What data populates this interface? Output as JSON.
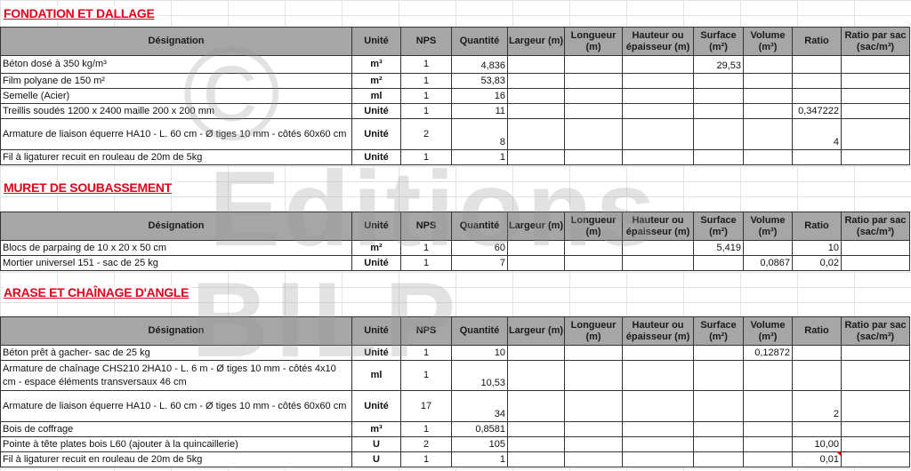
{
  "columns": [
    "Désignation",
    "Unité",
    "NPS",
    "Quantité",
    "Largeur (m)",
    "Longueur (m)",
    "Hauteur ou épaisseur (m)",
    "Surface (m²)",
    "Volume (m³)",
    "Ratio",
    "Ratio par sac (sac/m³)"
  ],
  "watermark": {
    "symbol": "©",
    "line1": "Editions",
    "line2": "BILP"
  },
  "sections": [
    {
      "title": "FONDATION ET DALLAGE",
      "rows": [
        [
          "Béton dosé à 350 kg/m³",
          "m³",
          "1",
          "4,836",
          "",
          "",
          "",
          "29,53",
          "",
          "",
          ""
        ],
        [
          "Film polyane de 150 m²",
          "m²",
          "1",
          "53,83",
          "",
          "",
          "",
          "",
          "",
          "",
          ""
        ],
        [
          "Semelle (Acier)",
          "ml",
          "1",
          "16",
          "",
          "",
          "",
          "",
          "",
          "",
          ""
        ],
        [
          "Treillis soudés 1200 x 2400 maille 200 x 200 mm",
          "Unité",
          "1",
          "11",
          "",
          "",
          "",
          "",
          "",
          "0,347222",
          ""
        ],
        [
          "Armature de liaison équerre HA10 - L. 60 cm - Ø tiges 10 mm - côtés 60x60 cm",
          "Unité",
          "2",
          "8",
          "",
          "",
          "",
          "",
          "",
          "4",
          ""
        ],
        [
          "Fil à ligaturer recuit en rouleau de 20m de 5kg",
          "Unité",
          "1",
          "1",
          "",
          "",
          "",
          "",
          "",
          "",
          ""
        ]
      ]
    },
    {
      "title": "MURET DE SOUBASSEMENT",
      "rows": [
        [
          "Blocs de parpaing de 10 x 20 x 50 cm",
          "m²",
          "1",
          "60",
          "",
          "",
          "",
          "5,419",
          "",
          "10",
          ""
        ],
        [
          "Mortier universel 151 - sac de 25 kg",
          "Unité",
          "1",
          "7",
          "",
          "",
          "",
          "",
          "0,0867",
          "0,02",
          ""
        ]
      ]
    },
    {
      "title": "ARASE ET CHAÎNAGE D'ANGLE",
      "rows": [
        [
          "Béton prêt à gacher- sac de 25 kg",
          "Unité",
          "1",
          "10",
          "",
          "",
          "",
          "",
          "0,12872",
          "",
          ""
        ],
        [
          "Armature de chaînage CHS210 2HA10 - L. 6 m - Ø tiges 10 mm - côtés 4x10 cm - espace éléments transversaux 46 cm",
          "ml",
          "1",
          "10,53",
          "",
          "",
          "",
          "",
          "",
          "",
          ""
        ],
        [
          "Armature de liaison équerre HA10 - L. 60 cm - Ø tiges 10 mm - côtés 60x60 cm",
          "Unité",
          "17",
          "34",
          "",
          "",
          "",
          "",
          "",
          "2",
          ""
        ],
        [
          "Bois de coffrage",
          "m³",
          "1",
          "0,8581",
          "",
          "",
          "",
          "",
          "",
          "",
          ""
        ],
        [
          "Pointe à tête plates bois L60 (ajouter à la quincaillerie)",
          "U",
          "2",
          "105",
          "",
          "",
          "",
          "",
          "",
          "10,00",
          ""
        ],
        [
          "Fil à ligaturer recuit en rouleau de 20m de 5kg",
          "U",
          "1",
          "1",
          "",
          "",
          "",
          "",
          "",
          "0,01",
          ""
        ]
      ]
    }
  ]
}
